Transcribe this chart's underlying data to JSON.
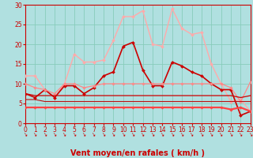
{
  "bg_color": "#b0e0e0",
  "grid_color": "#88ccbb",
  "xlabel": "Vent moyen/en rafales ( km/h )",
  "xlabel_color": "#cc0000",
  "xlabel_fontsize": 7,
  "tick_color": "#cc0000",
  "ylim": [
    0,
    30
  ],
  "xlim": [
    0,
    23
  ],
  "yticks": [
    0,
    5,
    10,
    15,
    20,
    25,
    30
  ],
  "xticks": [
    0,
    1,
    2,
    3,
    4,
    5,
    6,
    7,
    8,
    9,
    10,
    11,
    12,
    13,
    14,
    15,
    16,
    17,
    18,
    19,
    20,
    21,
    22,
    23
  ],
  "lines": [
    {
      "x": [
        0,
        1,
        2,
        3,
        4,
        5,
        6,
        7,
        8,
        9,
        10,
        11,
        12,
        13,
        14,
        15,
        16,
        17,
        18,
        19,
        20,
        21,
        22,
        23
      ],
      "y": [
        12,
        12,
        8.5,
        6.5,
        10,
        17.5,
        15.5,
        15.5,
        16,
        21,
        27,
        27,
        28.5,
        20,
        19.5,
        29,
        24,
        22.5,
        23,
        15,
        10,
        5.5,
        6,
        3
      ],
      "color": "#ffaaaa",
      "lw": 1.0,
      "marker": "D",
      "ms": 2.0
    },
    {
      "x": [
        0,
        1,
        2,
        3,
        4,
        5,
        6,
        7,
        8,
        9,
        10,
        11,
        12,
        13,
        14,
        15,
        16,
        17,
        18,
        19,
        20,
        21,
        22,
        23
      ],
      "y": [
        7.5,
        6.5,
        8.5,
        6.5,
        9.5,
        9.5,
        7.5,
        9,
        12,
        13,
        19.5,
        20.5,
        13.5,
        9.5,
        9.5,
        15.5,
        14.5,
        13,
        12,
        10,
        8.5,
        8.5,
        2,
        3
      ],
      "color": "#cc0000",
      "lw": 1.2,
      "marker": "D",
      "ms": 2.0
    },
    {
      "x": [
        0,
        1,
        2,
        3,
        4,
        5,
        6,
        7,
        8,
        9,
        10,
        11,
        12,
        13,
        14,
        15,
        16,
        17,
        18,
        19,
        20,
        21,
        22,
        23
      ],
      "y": [
        10,
        9,
        8.5,
        7.5,
        10,
        10,
        9,
        9.5,
        10,
        10,
        10,
        10,
        10,
        10,
        10,
        10,
        10,
        10,
        10,
        10,
        10,
        9,
        5.5,
        10.5
      ],
      "color": "#ff8888",
      "lw": 0.9,
      "marker": "D",
      "ms": 1.8
    },
    {
      "x": [
        0,
        1,
        2,
        3,
        4,
        5,
        6,
        7,
        8,
        9,
        10,
        11,
        12,
        13,
        14,
        15,
        16,
        17,
        18,
        19,
        20,
        21,
        22,
        23
      ],
      "y": [
        7.5,
        7,
        7,
        7,
        7,
        7,
        7,
        7,
        7,
        7,
        7,
        7,
        7,
        7,
        7,
        7,
        7,
        7,
        7,
        7,
        7,
        7,
        6.5,
        7
      ],
      "color": "#cc0000",
      "lw": 0.9,
      "marker": null,
      "ms": 0
    },
    {
      "x": [
        0,
        1,
        2,
        3,
        4,
        5,
        6,
        7,
        8,
        9,
        10,
        11,
        12,
        13,
        14,
        15,
        16,
        17,
        18,
        19,
        20,
        21,
        22,
        23
      ],
      "y": [
        4,
        4,
        4,
        4,
        4,
        4,
        4,
        4,
        4,
        4,
        4,
        4,
        4,
        4,
        4,
        4,
        4,
        4,
        4,
        4,
        4,
        3.5,
        4,
        3
      ],
      "color": "#ff4444",
      "lw": 1.6,
      "marker": "D",
      "ms": 1.8
    },
    {
      "x": [
        0,
        1,
        2,
        3,
        4,
        5,
        6,
        7,
        8,
        9,
        10,
        11,
        12,
        13,
        14,
        15,
        16,
        17,
        18,
        19,
        20,
        21,
        22,
        23
      ],
      "y": [
        6,
        6,
        5.5,
        5.5,
        5.5,
        5.5,
        5.5,
        5.5,
        5.5,
        5.5,
        5.5,
        5.5,
        5.5,
        5.5,
        5.5,
        5.5,
        5.5,
        5.5,
        5.5,
        5.5,
        5.5,
        5.5,
        5.5,
        5.5
      ],
      "color": "#bb1111",
      "lw": 0.8,
      "marker": null,
      "ms": 0
    }
  ],
  "arrow_color": "#cc0000"
}
